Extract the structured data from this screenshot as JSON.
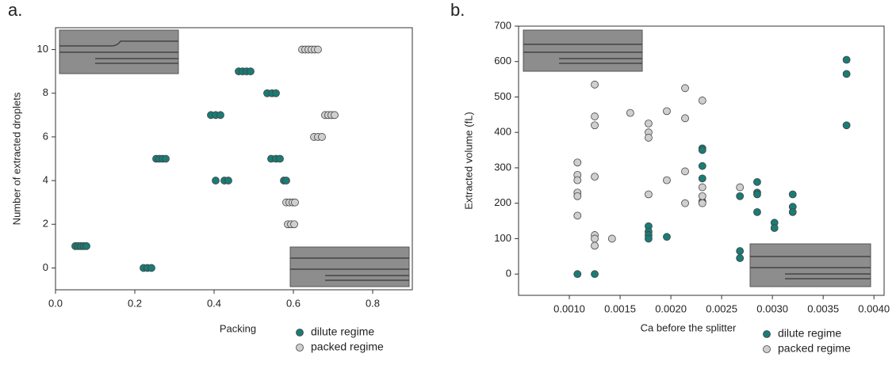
{
  "chart_data": [
    {
      "type": "scatter",
      "panel_label": "a.",
      "x_label": "Packing",
      "y_label": "Number of extracted droplets",
      "xlim": [
        0,
        0.9
      ],
      "ylim": [
        -1,
        11
      ],
      "xticks": [
        {
          "value": 0,
          "label": "0.0"
        },
        0.2,
        0.4,
        0.6,
        0.8
      ],
      "yticks": [
        0,
        2,
        4,
        6,
        8,
        10
      ],
      "series": [
        {
          "name": "dilute regime",
          "color": "#1b7b75",
          "x": [
            0.05,
            0.057,
            0.064,
            0.071,
            0.078,
            0.222,
            0.232,
            0.242,
            0.254,
            0.262,
            0.27,
            0.278,
            0.392,
            0.404,
            0.416,
            0.404,
            0.426,
            0.436,
            0.462,
            0.472,
            0.482,
            0.492,
            0.534,
            0.546,
            0.556,
            0.544,
            0.556,
            0.566,
            0.576,
            0.582
          ],
          "values": [
            1,
            1,
            1,
            1,
            1,
            0,
            0,
            0,
            5,
            5,
            5,
            5,
            7,
            7,
            7,
            4,
            4,
            4,
            9,
            9,
            9,
            9,
            8,
            8,
            8,
            5,
            5,
            5,
            4,
            4
          ]
        },
        {
          "name": "packed regime",
          "color": "#cfcfcf",
          "x": [
            0.622,
            0.63,
            0.638,
            0.646,
            0.654,
            0.662,
            0.68,
            0.688,
            0.696,
            0.704,
            0.652,
            0.662,
            0.672,
            0.582,
            0.59,
            0.598,
            0.604,
            0.586,
            0.594,
            0.602
          ],
          "values": [
            10,
            10,
            10,
            10,
            10,
            10,
            7,
            7,
            7,
            7,
            6,
            6,
            6,
            3,
            3,
            3,
            3,
            2,
            2,
            2
          ]
        }
      ]
    },
    {
      "type": "scatter",
      "panel_label": "b.",
      "x_label": "Ca before the splitter",
      "y_label": "Extracted volume (fL)",
      "xlim": [
        0.0005,
        0.0041
      ],
      "ylim": [
        -60,
        700
      ],
      "xticks": [
        {
          "value": 0.001,
          "label": "0.0010"
        },
        {
          "value": 0.0015,
          "label": "0.0015"
        },
        {
          "value": 0.002,
          "label": "0.0020"
        },
        {
          "value": 0.0025,
          "label": "0.0025"
        },
        {
          "value": 0.003,
          "label": "0.0030"
        },
        {
          "value": 0.0035,
          "label": "0.0035"
        },
        {
          "value": 0.004,
          "label": "0.0040"
        }
      ],
      "yticks": [
        0,
        100,
        200,
        300,
        400,
        500,
        600,
        700
      ],
      "series": [
        {
          "name": "dilute regime",
          "color": "#1b7b75",
          "x": [
            0.00108,
            0.00125,
            0.00178,
            0.00178,
            0.00178,
            0.00178,
            0.00196,
            0.00231,
            0.00231,
            0.00231,
            0.00231,
            0.00231,
            0.00268,
            0.00268,
            0.00268,
            0.00285,
            0.00285,
            0.00285,
            0.00285,
            0.00302,
            0.00302,
            0.0032,
            0.0032,
            0.0032,
            0.00373,
            0.00373,
            0.00373
          ],
          "values": [
            0,
            0,
            135,
            120,
            110,
            100,
            105,
            355,
            350,
            305,
            270,
            205,
            220,
            65,
            45,
            260,
            230,
            225,
            175,
            145,
            130,
            225,
            190,
            175,
            605,
            565,
            420
          ]
        },
        {
          "name": "packed regime",
          "color": "#cfcfcf",
          "x": [
            0.00108,
            0.00108,
            0.00108,
            0.00108,
            0.00108,
            0.00108,
            0.00125,
            0.00125,
            0.00125,
            0.00125,
            0.00125,
            0.00125,
            0.00125,
            0.00142,
            0.0016,
            0.00178,
            0.00178,
            0.00178,
            0.00178,
            0.00196,
            0.00196,
            0.00214,
            0.00214,
            0.00214,
            0.00214,
            0.00231,
            0.00231,
            0.00231,
            0.00231,
            0.00268
          ],
          "values": [
            315,
            280,
            265,
            230,
            220,
            165,
            535,
            445,
            420,
            275,
            110,
            100,
            80,
            100,
            455,
            425,
            400,
            385,
            225,
            460,
            265,
            525,
            440,
            290,
            200,
            490,
            245,
            220,
            200,
            245
          ]
        }
      ]
    }
  ]
}
